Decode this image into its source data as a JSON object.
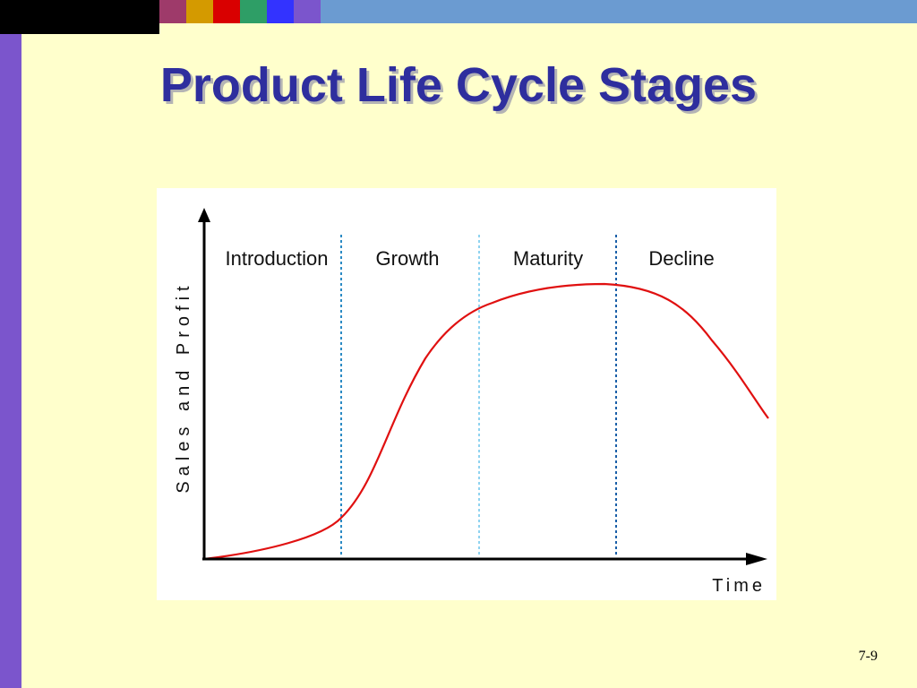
{
  "slide": {
    "title": "Product Life Cycle Stages",
    "page_number": "7-9"
  },
  "decor": {
    "swatches": [
      "#9e3a6a",
      "#d49a00",
      "#d90000",
      "#2e9e66",
      "#3333ff",
      "#7b55cc"
    ]
  },
  "diagram": {
    "y_axis_label": "Sales and Profit",
    "x_axis_label": "Time",
    "stages": [
      "Introduction",
      "Growth",
      "Maturity",
      "Decline"
    ],
    "curve_color": "#e01010",
    "divider_color": "#2a8ac4"
  }
}
